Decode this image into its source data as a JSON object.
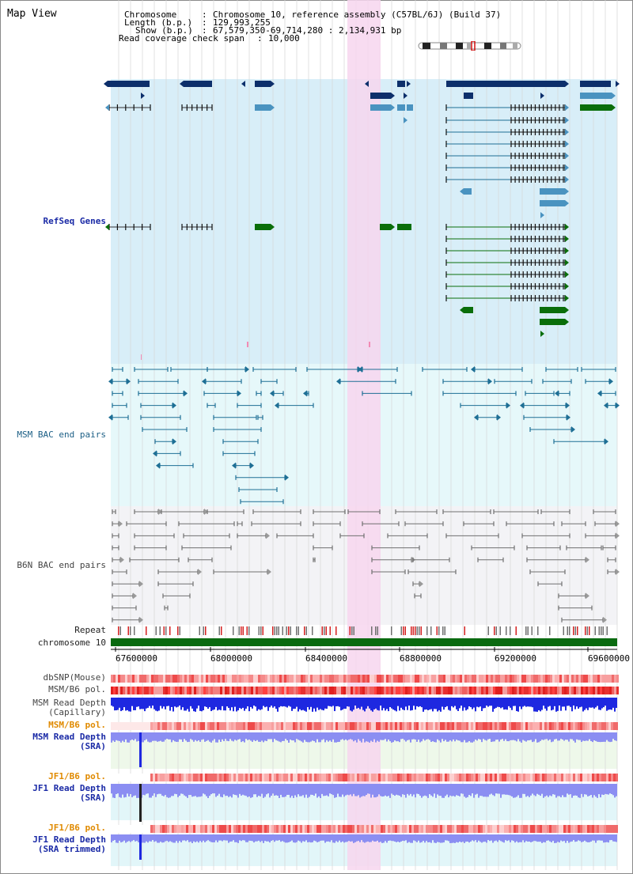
{
  "title": "Map View",
  "header": {
    "chromosome_label": "Chromosome",
    "chromosome_value": "Chromosome 10, reference assembly (C57BL/6J) (Build 37)",
    "length_label": "Length (b.p.)",
    "length_value": "129,993,255",
    "show_label": "Show (b.p.)",
    "show_value": "67,579,350-69,714,280 : 2,134,931 bp",
    "span_label": "Read coverage check span",
    "span_value": "10,000"
  },
  "tracks": {
    "refseq": "RefSeq Genes",
    "msm_bac": "MSM BAC end pairs",
    "b6n_bac": "B6N BAC end pairs",
    "repeat": "Repeat",
    "chromosome": "chromosome 10",
    "dbsnp": "dbSNP(Mouse)",
    "msm_b6_pol_1": "MSM/B6 pol.",
    "msm_depth_cap_1": "MSM Read Depth",
    "msm_depth_cap_2": "(Capillary)",
    "msm_b6_pol_2": "MSM/B6 pol.",
    "msm_depth_sra_1": "MSM Read Depth",
    "msm_depth_sra_2": "(SRA)",
    "jf1_b6_pol_1": "JF1/B6 pol.",
    "jf1_depth_sra_1": "JF1 Read Depth",
    "jf1_depth_sra_2": "(SRA)",
    "jf1_b6_pol_2": "JF1/B6 pol.",
    "jf1_depth_trim_1": "JF1 Read Depth",
    "jf1_depth_trim_2": "(SRA trimmed)"
  },
  "axis": {
    "ticks": [
      "67600000",
      "68000000",
      "68400000",
      "68800000",
      "69200000",
      "69600000"
    ]
  },
  "colors": {
    "refseq_bg": "#d8eef8",
    "msm_bac_bg": "#e6f8fa",
    "b6n_bac_bg": "#f3f3f6",
    "highlight": "#f7d6ef",
    "gene_dark": "#0d2f6b",
    "gene_light": "#4a93c0",
    "gene_green": "#0a6e0a",
    "bac_teal": "#1e6f95",
    "bac_gray": "#707070",
    "chromosome": "#0a6a10",
    "depth_blue": "#1e28e0",
    "depth_light": "#8b8ef2",
    "pol_red": "#f05050"
  }
}
